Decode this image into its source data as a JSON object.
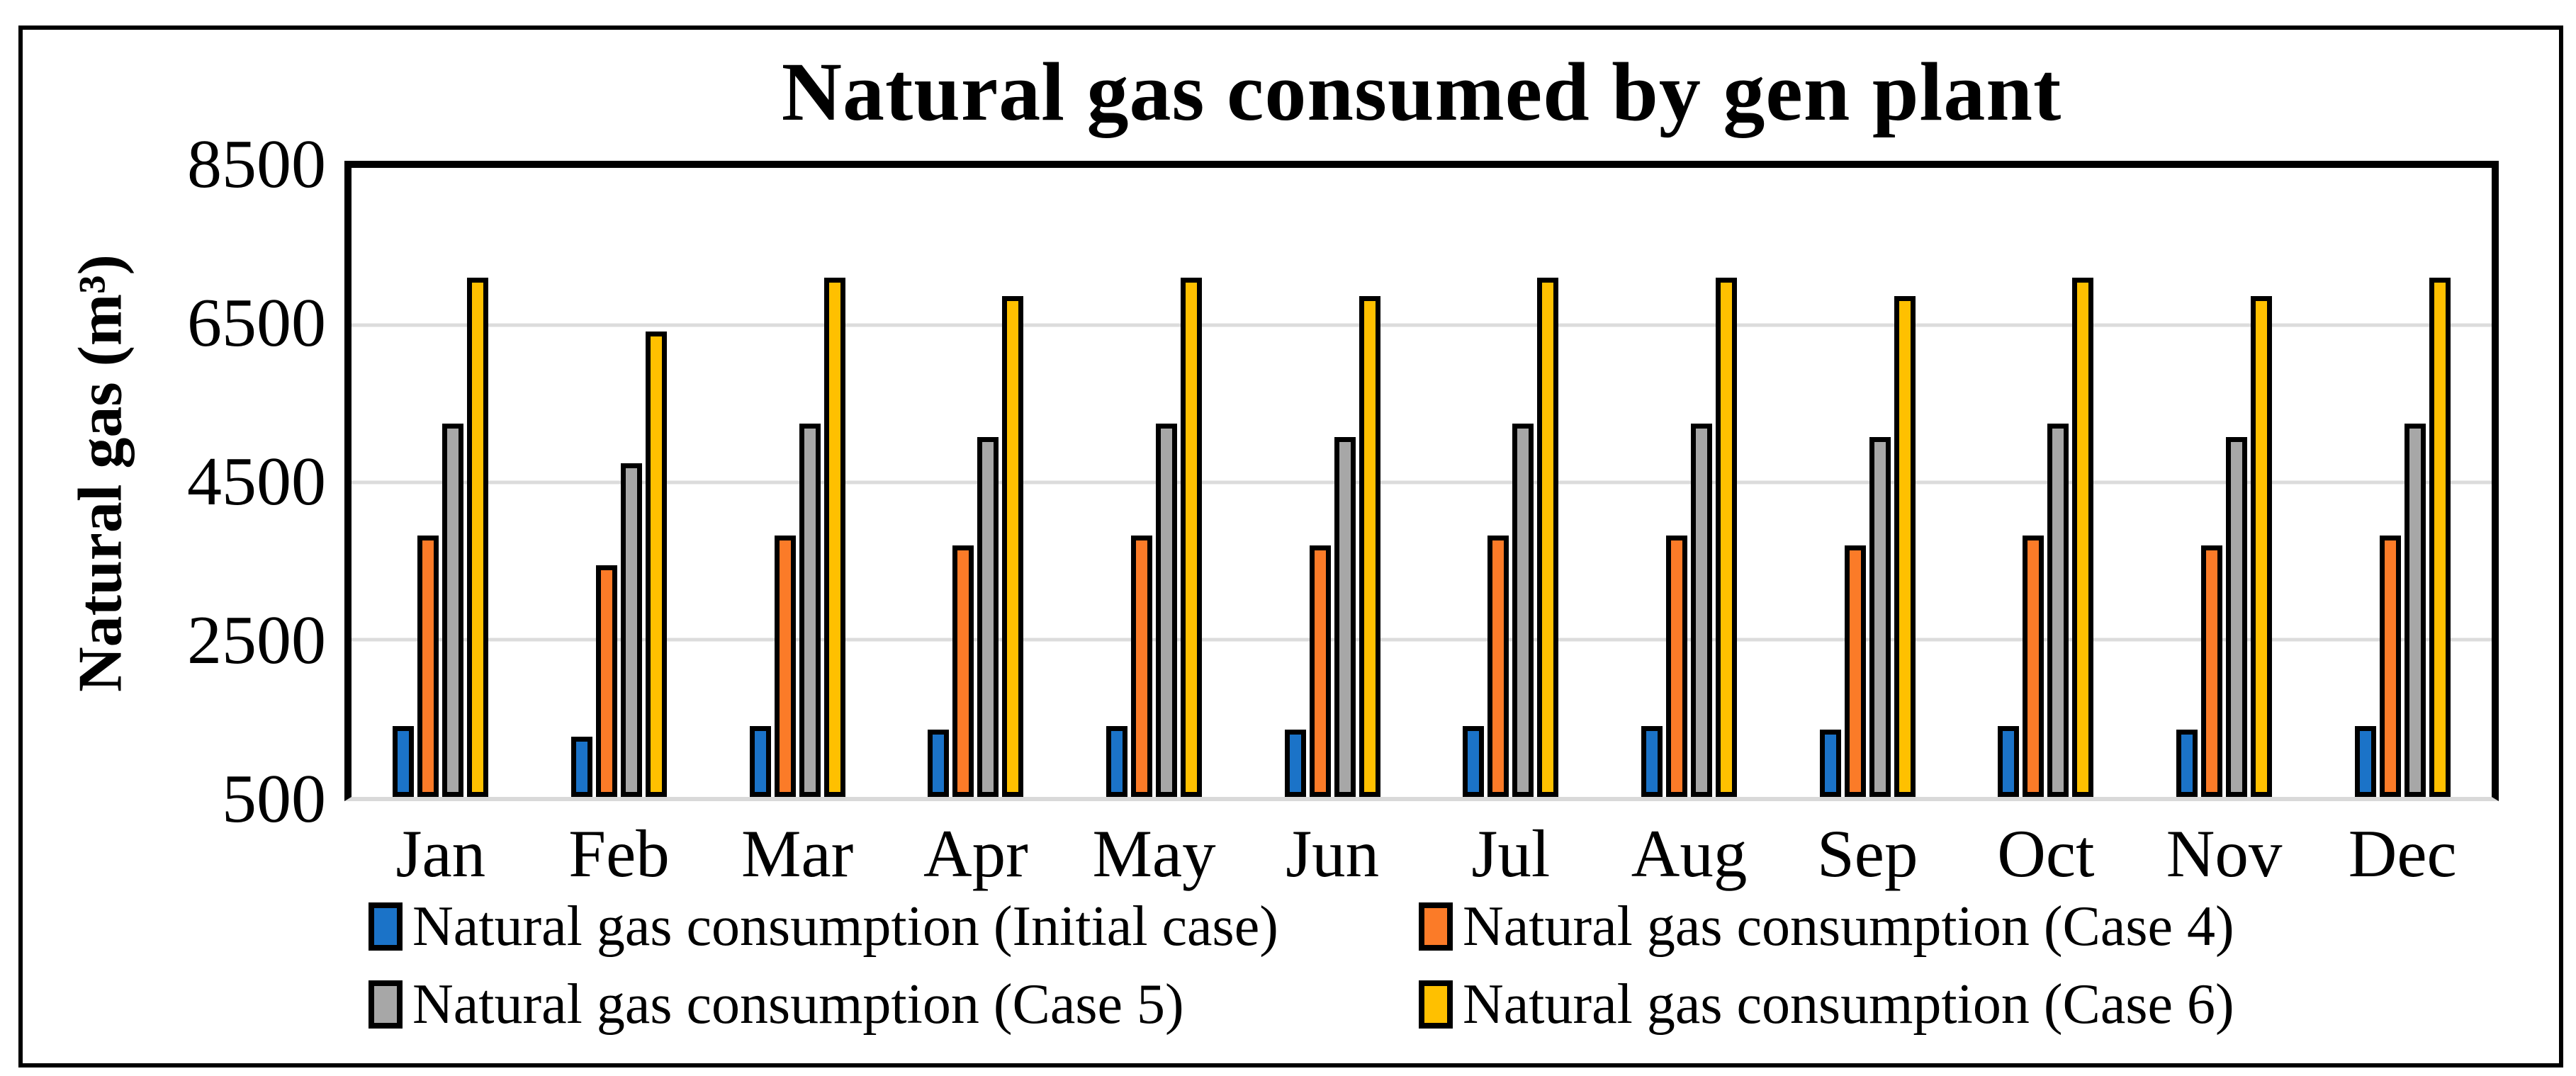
{
  "title": "Natural gas consumed by gen plant",
  "y_axis": {
    "label": "Natural gas (m³)",
    "ticks": [
      8500,
      6500,
      4500,
      2500,
      500
    ]
  },
  "colors": {
    "initial_case": "#1B73C8",
    "case_4": "#FB7B28",
    "case_5": "#A7A7A7",
    "case_6": "#FFC000",
    "bar_outline": "#000000",
    "gridline": "#DCDCDC",
    "baseline": "#D9D9D9"
  },
  "chart_data": {
    "type": "bar",
    "title": "Natural gas consumed by gen plant",
    "xlabel": "",
    "ylabel": "Natural gas (m³)",
    "ylim": [
      500,
      8500
    ],
    "yticks": [
      8500,
      6500,
      4500,
      2500,
      500
    ],
    "gridlines": [
      6500,
      4500,
      2500
    ],
    "grid": "horizontal",
    "legend_position": "bottom",
    "categories": [
      "Jan",
      "Feb",
      "Mar",
      "Apr",
      "May",
      "Jun",
      "Jul",
      "Aug",
      "Sep",
      "Oct",
      "Nov",
      "Dec"
    ],
    "series": [
      {
        "name": "Natural gas consumption (Initial case)",
        "color": "#1B73C8",
        "values": [
          1400,
          1265,
          1400,
          1355,
          1400,
          1355,
          1400,
          1400,
          1355,
          1400,
          1355,
          1400
        ]
      },
      {
        "name": "Natural gas consumption (Case 4)",
        "color": "#FB7B28",
        "values": [
          3820,
          3450,
          3820,
          3700,
          3820,
          3700,
          3820,
          3820,
          3700,
          3820,
          3700,
          3820
        ]
      },
      {
        "name": "Natural gas consumption (Case 5)",
        "color": "#A7A7A7",
        "values": [
          5250,
          4740,
          5250,
          5080,
          5250,
          5080,
          5250,
          5250,
          5080,
          5250,
          5080,
          5250
        ]
      },
      {
        "name": "Natural gas consumption (Case 6)",
        "color": "#FFC000",
        "values": [
          7100,
          6420,
          7100,
          6870,
          7100,
          6870,
          7100,
          7100,
          6870,
          7100,
          6870,
          7100
        ]
      }
    ]
  }
}
